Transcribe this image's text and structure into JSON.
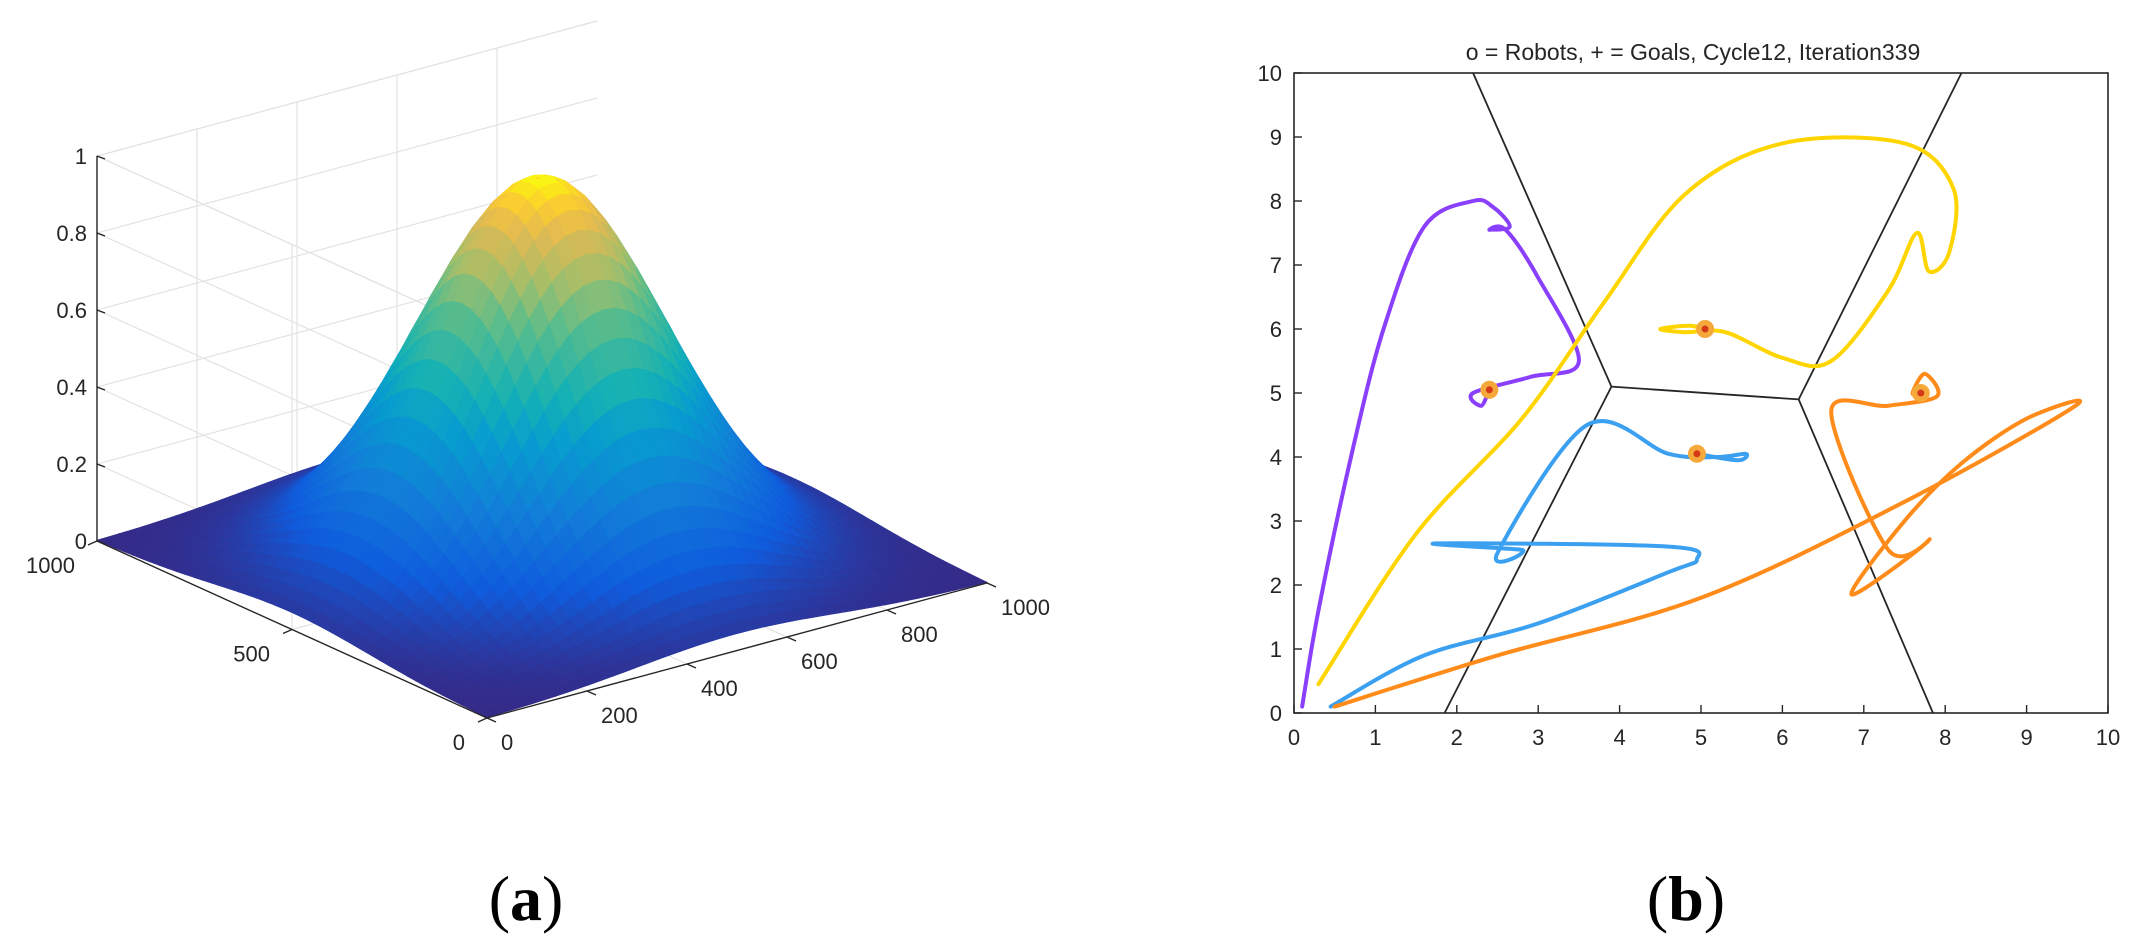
{
  "panels": {
    "a": {
      "caption_open": "(",
      "caption_letter": "a",
      "caption_close": ")"
    },
    "b": {
      "caption_open": "(",
      "caption_letter": "b",
      "caption_close": ")"
    }
  },
  "chart_data": [
    {
      "type": "surface",
      "title": "",
      "surface": "2D Gaussian, peak 1 at center (500, 500), sigma ≈ 200",
      "peak": {
        "x": 500,
        "y": 500,
        "z": 1
      },
      "sigma": 200,
      "colormap": "parula",
      "xlim": [
        0,
        1000
      ],
      "ylim": [
        0,
        1000
      ],
      "zlim": [
        0,
        1
      ],
      "x_ticks": [
        "0",
        "200",
        "400",
        "600",
        "800",
        "1000"
      ],
      "y_ticks": [
        "0",
        "500",
        "1000"
      ],
      "z_ticks": [
        "0",
        "0.2",
        "0.4",
        "0.6",
        "0.8",
        "1"
      ],
      "grid": true
    },
    {
      "type": "line",
      "title": "o = Robots, + = Goals, Cycle12, Iteration339",
      "xlim": [
        0,
        10
      ],
      "ylim": [
        0,
        10
      ],
      "x_ticks": [
        "0",
        "1",
        "2",
        "3",
        "4",
        "5",
        "6",
        "7",
        "8",
        "9",
        "10"
      ],
      "y_ticks": [
        "0",
        "1",
        "2",
        "3",
        "4",
        "5",
        "6",
        "7",
        "8",
        "9",
        "10"
      ],
      "voronoi_edges": [
        [
          [
            2.2,
            10
          ],
          [
            3.9,
            5.1
          ]
        ],
        [
          [
            1.85,
            0
          ],
          [
            3.9,
            5.1
          ]
        ],
        [
          [
            3.9,
            5.1
          ],
          [
            6.2,
            4.9
          ]
        ],
        [
          [
            6.2,
            4.9
          ],
          [
            8.2,
            10
          ]
        ],
        [
          [
            6.2,
            4.9
          ],
          [
            7.85,
            0
          ]
        ]
      ],
      "series": [
        {
          "color": "#8a3ffc",
          "points": [
            [
              0.1,
              0.1
            ],
            [
              0.3,
              1.6
            ],
            [
              0.7,
              4.0
            ],
            [
              1.1,
              6.0
            ],
            [
              1.6,
              7.6
            ],
            [
              2.2,
              8.0
            ],
            [
              2.45,
              7.9
            ],
            [
              2.65,
              7.6
            ],
            [
              2.4,
              7.55
            ],
            [
              2.6,
              7.55
            ],
            [
              3.0,
              6.8
            ],
            [
              3.5,
              5.5
            ],
            [
              2.9,
              5.25
            ],
            [
              2.2,
              5.0
            ],
            [
              2.3,
              4.8
            ],
            [
              2.4,
              5.05
            ]
          ]
        },
        {
          "color": "#ffd500",
          "points": [
            [
              0.3,
              0.45
            ],
            [
              1.5,
              2.8
            ],
            [
              2.8,
              4.6
            ],
            [
              3.8,
              6.4
            ],
            [
              4.8,
              8.1
            ],
            [
              6.0,
              8.9
            ],
            [
              7.5,
              8.9
            ],
            [
              8.1,
              8.2
            ],
            [
              8.05,
              7.2
            ],
            [
              7.8,
              6.9
            ],
            [
              7.65,
              7.5
            ],
            [
              7.3,
              6.6
            ],
            [
              6.6,
              5.5
            ],
            [
              6.0,
              5.55
            ],
            [
              5.3,
              5.95
            ],
            [
              4.8,
              5.95
            ],
            [
              4.5,
              6.0
            ],
            [
              4.85,
              6.05
            ],
            [
              5.05,
              6.0
            ]
          ]
        },
        {
          "color": "#3ca0f0",
          "points": [
            [
              0.45,
              0.1
            ],
            [
              1.6,
              0.9
            ],
            [
              3.0,
              1.4
            ],
            [
              4.6,
              2.2
            ],
            [
              4.95,
              2.4
            ],
            [
              4.6,
              2.6
            ],
            [
              1.75,
              2.65
            ],
            [
              2.8,
              2.55
            ],
            [
              2.5,
              2.5
            ],
            [
              3.6,
              4.5
            ],
            [
              4.6,
              4.05
            ],
            [
              5.2,
              4.0
            ],
            [
              5.55,
              4.05
            ],
            [
              5.45,
              3.95
            ],
            [
              4.95,
              4.05
            ]
          ]
        },
        {
          "color": "#ff8c1a",
          "points": [
            [
              0.5,
              0.1
            ],
            [
              2.5,
              0.9
            ],
            [
              5.0,
              1.8
            ],
            [
              7.5,
              3.3
            ],
            [
              9.6,
              4.8
            ],
            [
              9.0,
              4.6
            ],
            [
              8.2,
              3.9
            ],
            [
              7.5,
              3.0
            ],
            [
              6.85,
              1.85
            ],
            [
              7.8,
              2.7
            ],
            [
              7.3,
              2.55
            ],
            [
              6.6,
              4.7
            ],
            [
              7.3,
              4.8
            ],
            [
              7.9,
              4.95
            ],
            [
              7.75,
              5.3
            ],
            [
              7.6,
              5.0
            ],
            [
              7.7,
              5.0
            ]
          ]
        }
      ],
      "robots_goals": [
        {
          "x": 2.4,
          "y": 5.05
        },
        {
          "x": 5.05,
          "y": 6.0
        },
        {
          "x": 4.95,
          "y": 4.05
        },
        {
          "x": 7.7,
          "y": 5.0
        }
      ],
      "marker_colors": {
        "outer": "#f4a93a",
        "inner": "#d43a1a"
      }
    }
  ]
}
